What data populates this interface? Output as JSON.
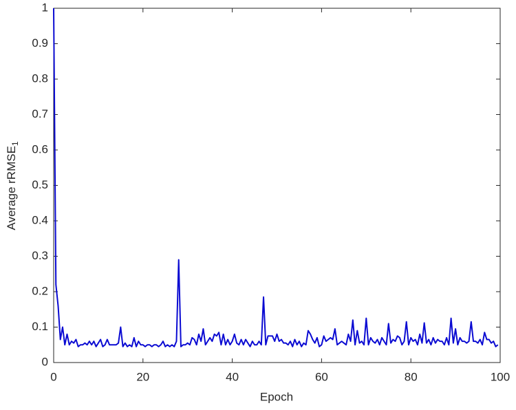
{
  "chart_data": {
    "type": "line",
    "xlabel": "Epoch",
    "ylabel": {
      "text": "Average rRMSE",
      "subscript": "1"
    },
    "color": "#0a0ad2",
    "xlim": [
      0,
      100
    ],
    "xticks": [
      0,
      20,
      40,
      60,
      80,
      100
    ],
    "ylim": [
      0,
      1
    ],
    "yticks": [
      0,
      0.1,
      0.2,
      0.3,
      0.4,
      0.5,
      0.6,
      0.7,
      0.8,
      0.9,
      1
    ],
    "x": [
      0,
      0.5,
      1,
      1.5,
      2,
      2.5,
      3,
      3.5,
      4,
      4.5,
      5,
      5.5,
      6,
      6.5,
      7,
      7.5,
      8,
      8.5,
      9,
      9.5,
      10,
      10.5,
      11,
      11.5,
      12,
      12.5,
      13,
      13.5,
      14,
      14.5,
      15,
      15.5,
      16,
      16.5,
      17,
      17.5,
      18,
      18.5,
      19,
      19.5,
      20,
      20.5,
      21,
      21.5,
      22,
      22.5,
      23,
      23.5,
      24,
      24.5,
      25,
      25.5,
      26,
      26.5,
      27,
      27.5,
      28,
      28.5,
      29,
      29.5,
      30,
      30.5,
      31,
      31.5,
      32,
      32.5,
      33,
      33.5,
      34,
      34.5,
      35,
      35.5,
      36,
      36.5,
      37,
      37.5,
      38,
      38.5,
      39,
      39.5,
      40,
      40.5,
      41,
      41.5,
      42,
      42.5,
      43,
      43.5,
      44,
      44.5,
      45,
      45.5,
      46,
      46.5,
      47,
      47.5,
      48,
      48.5,
      49,
      49.5,
      50,
      50.5,
      51,
      51.5,
      52,
      52.5,
      53,
      53.5,
      54,
      54.5,
      55,
      55.5,
      56,
      56.5,
      57,
      57.5,
      58,
      58.5,
      59,
      59.5,
      60,
      60.5,
      61,
      61.5,
      62,
      62.5,
      63,
      63.5,
      64,
      64.5,
      65,
      65.5,
      66,
      66.5,
      67,
      67.5,
      68,
      68.5,
      69,
      69.5,
      70,
      70.5,
      71,
      71.5,
      72,
      72.5,
      73,
      73.5,
      74,
      74.5,
      75,
      75.5,
      76,
      76.5,
      77,
      77.5,
      78,
      78.5,
      79,
      79.5,
      80,
      80.5,
      81,
      81.5,
      82,
      82.5,
      83,
      83.5,
      84,
      84.5,
      85,
      85.5,
      86,
      86.5,
      87,
      87.5,
      88,
      88.5,
      89,
      89.5,
      90,
      90.5,
      91,
      91.5,
      92,
      92.5,
      93,
      93.5,
      94,
      94.5,
      95,
      95.5,
      96,
      96.5,
      97,
      97.5,
      98,
      98.5,
      99,
      99.5
    ],
    "values": [
      1.0,
      0.22,
      0.16,
      0.065,
      0.1,
      0.05,
      0.08,
      0.05,
      0.06,
      0.055,
      0.065,
      0.045,
      0.05,
      0.05,
      0.055,
      0.05,
      0.06,
      0.05,
      0.06,
      0.045,
      0.055,
      0.065,
      0.045,
      0.05,
      0.065,
      0.05,
      0.05,
      0.05,
      0.05,
      0.055,
      0.1,
      0.045,
      0.055,
      0.045,
      0.05,
      0.045,
      0.07,
      0.045,
      0.06,
      0.05,
      0.05,
      0.045,
      0.05,
      0.05,
      0.045,
      0.05,
      0.05,
      0.045,
      0.05,
      0.06,
      0.045,
      0.05,
      0.045,
      0.05,
      0.045,
      0.06,
      0.29,
      0.045,
      0.05,
      0.05,
      0.055,
      0.05,
      0.07,
      0.065,
      0.05,
      0.08,
      0.06,
      0.095,
      0.05,
      0.06,
      0.07,
      0.06,
      0.08,
      0.075,
      0.085,
      0.05,
      0.08,
      0.05,
      0.065,
      0.05,
      0.06,
      0.08,
      0.055,
      0.05,
      0.065,
      0.05,
      0.065,
      0.055,
      0.045,
      0.06,
      0.05,
      0.05,
      0.06,
      0.05,
      0.185,
      0.05,
      0.075,
      0.075,
      0.075,
      0.06,
      0.08,
      0.06,
      0.065,
      0.055,
      0.055,
      0.05,
      0.06,
      0.045,
      0.065,
      0.05,
      0.06,
      0.045,
      0.055,
      0.05,
      0.09,
      0.08,
      0.065,
      0.055,
      0.07,
      0.045,
      0.05,
      0.075,
      0.06,
      0.065,
      0.07,
      0.065,
      0.095,
      0.05,
      0.055,
      0.06,
      0.055,
      0.05,
      0.08,
      0.06,
      0.12,
      0.05,
      0.09,
      0.055,
      0.06,
      0.05,
      0.125,
      0.05,
      0.07,
      0.06,
      0.055,
      0.065,
      0.05,
      0.07,
      0.06,
      0.05,
      0.11,
      0.055,
      0.065,
      0.06,
      0.075,
      0.07,
      0.05,
      0.06,
      0.115,
      0.05,
      0.07,
      0.06,
      0.065,
      0.05,
      0.08,
      0.055,
      0.112,
      0.055,
      0.065,
      0.05,
      0.07,
      0.055,
      0.065,
      0.06,
      0.06,
      0.05,
      0.07,
      0.05,
      0.125,
      0.055,
      0.095,
      0.05,
      0.07,
      0.06,
      0.06,
      0.055,
      0.06,
      0.115,
      0.06,
      0.06,
      0.055,
      0.065,
      0.05,
      0.085,
      0.065,
      0.065,
      0.055,
      0.06,
      0.045,
      0.05
    ]
  }
}
